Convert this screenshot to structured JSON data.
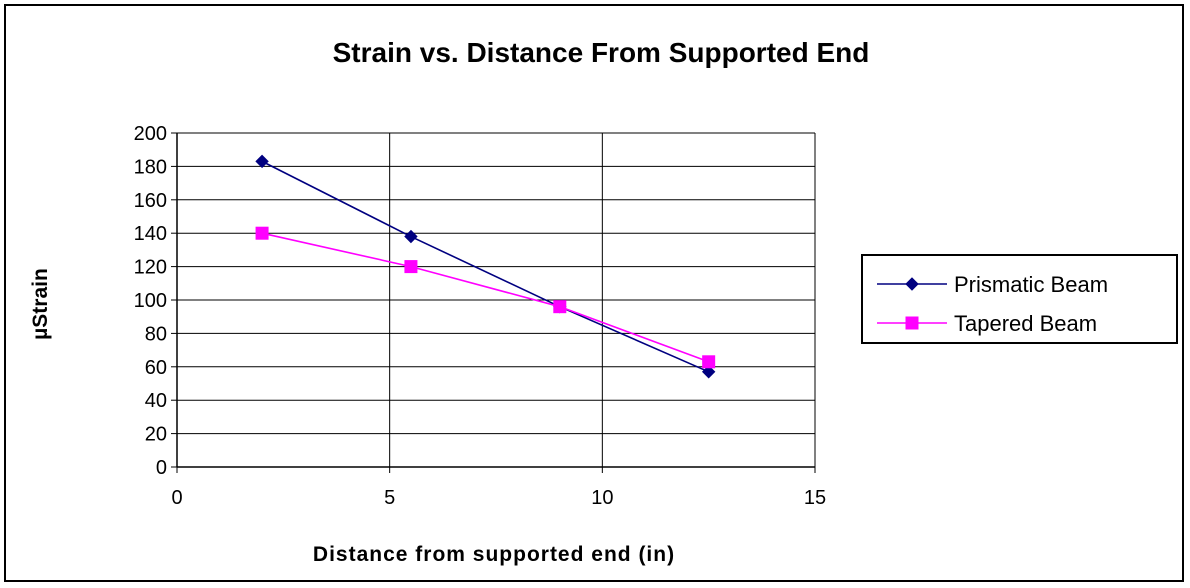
{
  "chart_data": {
    "type": "line",
    "title": "Strain vs. Distance From Supported End",
    "xlabel": "Distance from supported end (in)",
    "ylabel": "µStrain",
    "xlim": [
      0,
      15
    ],
    "ylim": [
      0,
      200
    ],
    "x_ticks": [
      0,
      5,
      10,
      15
    ],
    "y_ticks": [
      0,
      20,
      40,
      60,
      80,
      100,
      120,
      140,
      160,
      180,
      200
    ],
    "grid": true,
    "legend_position": "right",
    "series": [
      {
        "name": "Prismatic Beam",
        "color": "#000080",
        "marker": "diamond",
        "x": [
          2,
          5.5,
          9,
          12.5
        ],
        "y": [
          183,
          138,
          96,
          57
        ]
      },
      {
        "name": "Tapered Beam",
        "color": "#FF00FF",
        "marker": "square",
        "x": [
          2,
          5.5,
          9,
          12.5
        ],
        "y": [
          140,
          120,
          96,
          63
        ]
      }
    ]
  }
}
